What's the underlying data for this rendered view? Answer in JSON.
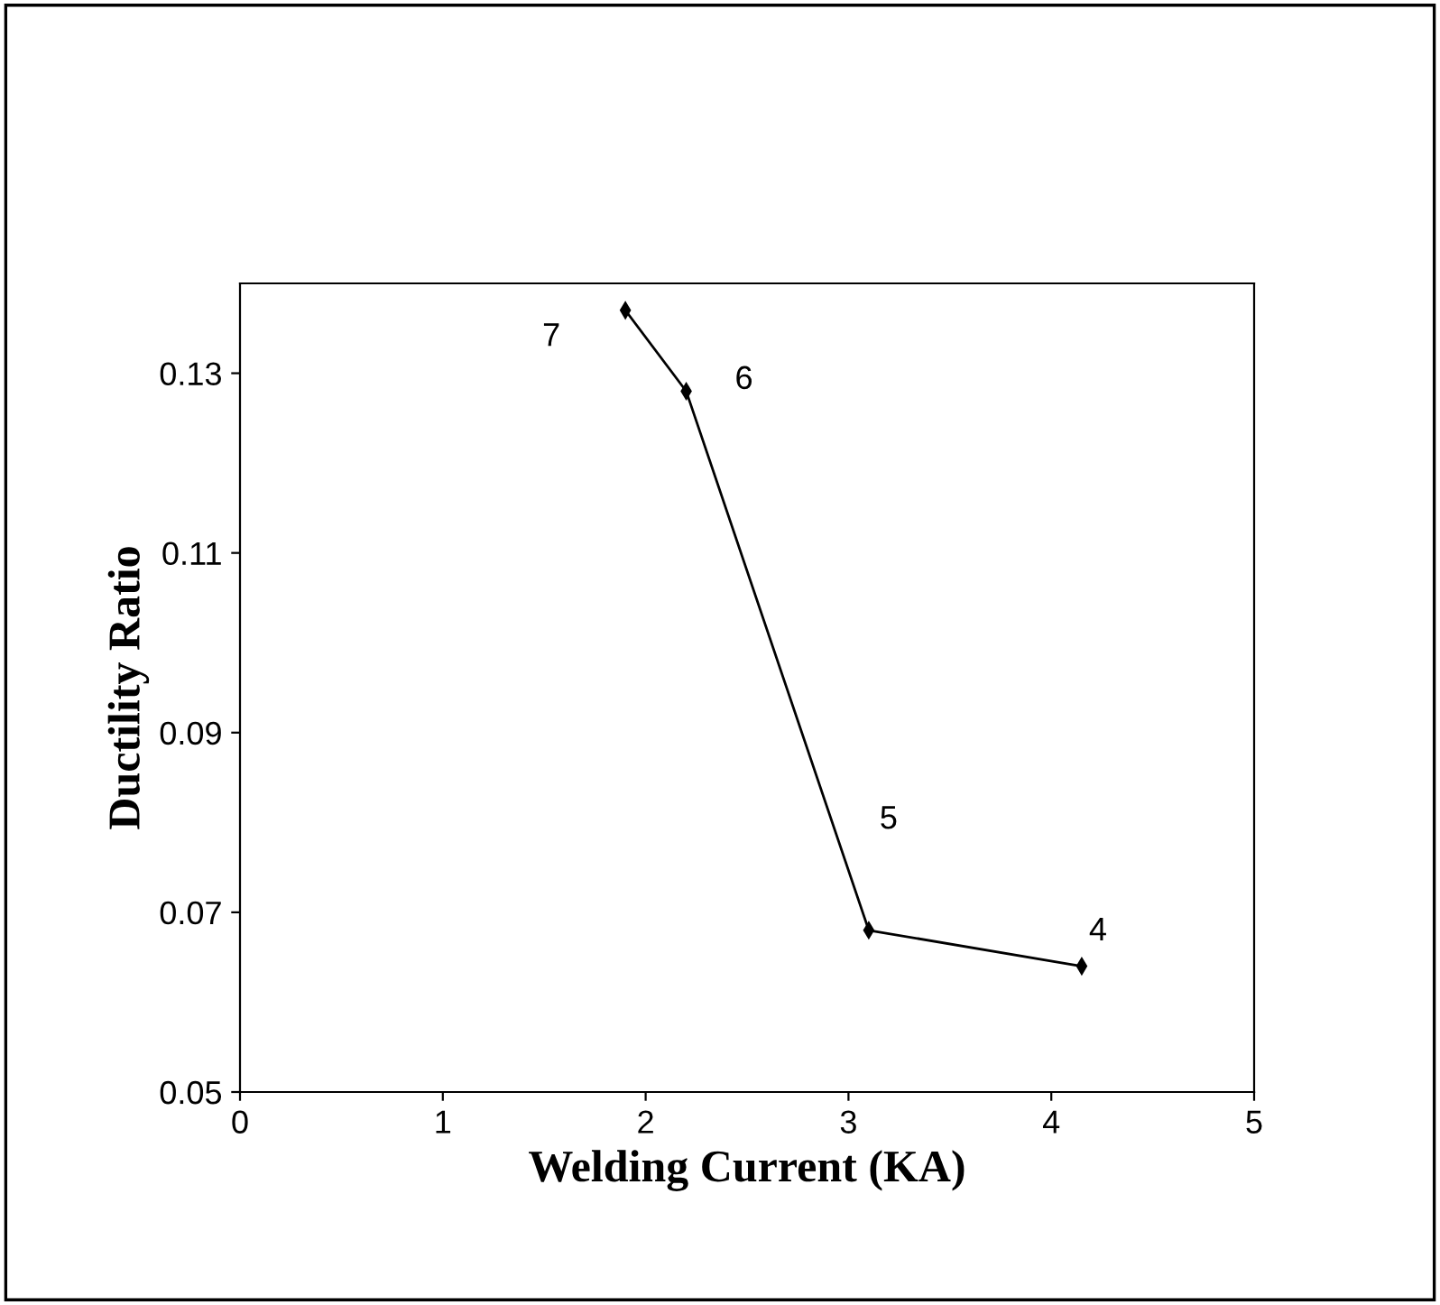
{
  "chart_data": {
    "type": "line",
    "xlabel": "Welding Current (KA)",
    "ylabel": "Ductility Ratio",
    "x": [
      1.9,
      2.2,
      3.1,
      4.15
    ],
    "series": [
      {
        "color": "#000000",
        "values": [
          0.137,
          0.128,
          0.068,
          0.064
        ]
      }
    ],
    "xlim": [
      0,
      5
    ],
    "xticks": [
      0,
      1,
      2,
      3,
      4,
      5
    ],
    "ylim": [
      0.05,
      0.14
    ],
    "yticks": [
      0.05,
      0.07,
      0.09,
      0.11,
      0.13
    ],
    "grid": false,
    "legend": false,
    "marker": "diamond",
    "line_style": "solid",
    "annotations": [
      "7",
      "6",
      "5",
      "4"
    ]
  }
}
